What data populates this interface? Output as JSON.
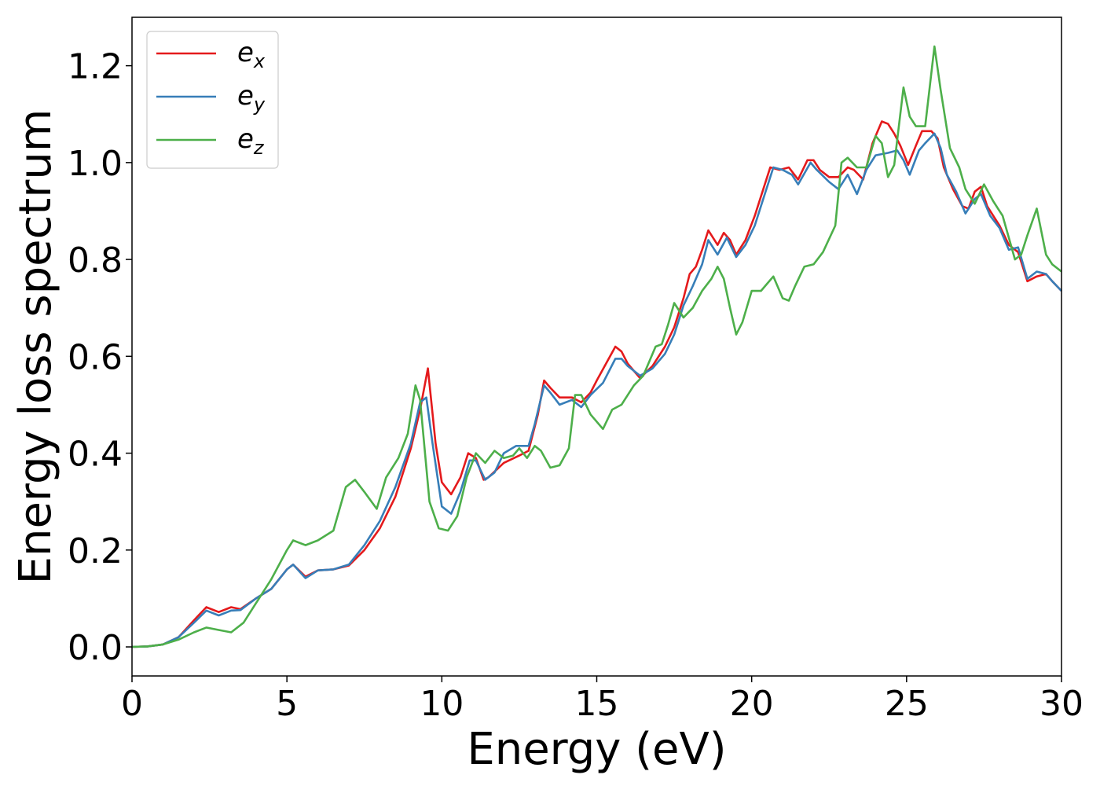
{
  "chart_data": {
    "type": "line",
    "xlabel": "Energy (eV)",
    "ylabel": "Energy loss spectrum",
    "xlim": [
      0,
      30
    ],
    "ylim": [
      -0.06,
      1.3
    ],
    "xticks": [
      0,
      5,
      10,
      15,
      20,
      25,
      30
    ],
    "yticks": [
      0.0,
      0.2,
      0.4,
      0.6,
      0.8,
      1.0,
      1.2
    ],
    "xtick_labels": [
      "0",
      "5",
      "10",
      "15",
      "20",
      "25",
      "30"
    ],
    "ytick_labels": [
      "0.0",
      "0.2",
      "0.4",
      "0.6",
      "0.8",
      "1.0",
      "1.2"
    ],
    "grid": false,
    "legend_position": "top-left",
    "series": [
      {
        "name": "e_x",
        "color": "#e41a1c",
        "points": [
          [
            0,
            0
          ],
          [
            0.5,
            0.001
          ],
          [
            1,
            0.005
          ],
          [
            1.5,
            0.02
          ],
          [
            2,
            0.055
          ],
          [
            2.4,
            0.082
          ],
          [
            2.8,
            0.072
          ],
          [
            3.2,
            0.082
          ],
          [
            3.5,
            0.078
          ],
          [
            4,
            0.1
          ],
          [
            4.5,
            0.12
          ],
          [
            5,
            0.16
          ],
          [
            5.2,
            0.17
          ],
          [
            5.6,
            0.145
          ],
          [
            6,
            0.158
          ],
          [
            6.5,
            0.16
          ],
          [
            7,
            0.168
          ],
          [
            7.5,
            0.2
          ],
          [
            8,
            0.245
          ],
          [
            8.5,
            0.31
          ],
          [
            9,
            0.41
          ],
          [
            9.3,
            0.49
          ],
          [
            9.55,
            0.575
          ],
          [
            9.8,
            0.42
          ],
          [
            10,
            0.34
          ],
          [
            10.3,
            0.315
          ],
          [
            10.6,
            0.35
          ],
          [
            10.85,
            0.4
          ],
          [
            11.1,
            0.39
          ],
          [
            11.35,
            0.345
          ],
          [
            11.5,
            0.35
          ],
          [
            12,
            0.38
          ],
          [
            12.5,
            0.395
          ],
          [
            12.8,
            0.405
          ],
          [
            13.1,
            0.48
          ],
          [
            13.3,
            0.55
          ],
          [
            13.5,
            0.535
          ],
          [
            13.8,
            0.515
          ],
          [
            14.2,
            0.515
          ],
          [
            14.5,
            0.505
          ],
          [
            14.8,
            0.525
          ],
          [
            15,
            0.55
          ],
          [
            15.3,
            0.585
          ],
          [
            15.6,
            0.62
          ],
          [
            15.8,
            0.61
          ],
          [
            16,
            0.585
          ],
          [
            16.4,
            0.555
          ],
          [
            16.8,
            0.58
          ],
          [
            17.2,
            0.62
          ],
          [
            17.5,
            0.66
          ],
          [
            17.8,
            0.72
          ],
          [
            18,
            0.77
          ],
          [
            18.2,
            0.785
          ],
          [
            18.4,
            0.82
          ],
          [
            18.6,
            0.86
          ],
          [
            18.9,
            0.83
          ],
          [
            19.1,
            0.855
          ],
          [
            19.3,
            0.84
          ],
          [
            19.5,
            0.81
          ],
          [
            19.8,
            0.84
          ],
          [
            20.1,
            0.89
          ],
          [
            20.4,
            0.95
          ],
          [
            20.6,
            0.99
          ],
          [
            20.9,
            0.985
          ],
          [
            21.2,
            0.99
          ],
          [
            21.5,
            0.965
          ],
          [
            21.8,
            1.005
          ],
          [
            22,
            1.005
          ],
          [
            22.2,
            0.985
          ],
          [
            22.5,
            0.97
          ],
          [
            22.8,
            0.97
          ],
          [
            23.1,
            0.99
          ],
          [
            23.3,
            0.985
          ],
          [
            23.6,
            0.965
          ],
          [
            23.9,
            1.04
          ],
          [
            24.2,
            1.085
          ],
          [
            24.4,
            1.08
          ],
          [
            24.6,
            1.06
          ],
          [
            24.8,
            1.035
          ],
          [
            25.05,
            0.995
          ],
          [
            25.3,
            1.035
          ],
          [
            25.5,
            1.065
          ],
          [
            25.8,
            1.065
          ],
          [
            26,
            1.05
          ],
          [
            26.2,
            0.99
          ],
          [
            26.5,
            0.945
          ],
          [
            26.8,
            0.91
          ],
          [
            27,
            0.905
          ],
          [
            27.2,
            0.94
          ],
          [
            27.4,
            0.95
          ],
          [
            27.6,
            0.91
          ],
          [
            28,
            0.87
          ],
          [
            28.3,
            0.83
          ],
          [
            28.6,
            0.815
          ],
          [
            28.9,
            0.755
          ],
          [
            29.2,
            0.765
          ],
          [
            29.5,
            0.77
          ],
          [
            29.7,
            0.755
          ],
          [
            30,
            0.735
          ]
        ]
      },
      {
        "name": "e_y",
        "color": "#377eb8",
        "points": [
          [
            0,
            0
          ],
          [
            0.5,
            0.001
          ],
          [
            1,
            0.005
          ],
          [
            1.5,
            0.02
          ],
          [
            2,
            0.05
          ],
          [
            2.4,
            0.075
          ],
          [
            2.8,
            0.065
          ],
          [
            3.2,
            0.075
          ],
          [
            3.5,
            0.076
          ],
          [
            4,
            0.1
          ],
          [
            4.5,
            0.12
          ],
          [
            5,
            0.16
          ],
          [
            5.2,
            0.17
          ],
          [
            5.6,
            0.142
          ],
          [
            6,
            0.158
          ],
          [
            6.5,
            0.16
          ],
          [
            7,
            0.17
          ],
          [
            7.5,
            0.21
          ],
          [
            8,
            0.26
          ],
          [
            8.5,
            0.33
          ],
          [
            9,
            0.42
          ],
          [
            9.3,
            0.505
          ],
          [
            9.5,
            0.515
          ],
          [
            9.7,
            0.42
          ],
          [
            10,
            0.29
          ],
          [
            10.3,
            0.275
          ],
          [
            10.6,
            0.32
          ],
          [
            10.9,
            0.385
          ],
          [
            11.1,
            0.385
          ],
          [
            11.4,
            0.345
          ],
          [
            11.7,
            0.36
          ],
          [
            12,
            0.4
          ],
          [
            12.4,
            0.415
          ],
          [
            12.8,
            0.415
          ],
          [
            13,
            0.46
          ],
          [
            13.3,
            0.54
          ],
          [
            13.5,
            0.525
          ],
          [
            13.8,
            0.5
          ],
          [
            14.2,
            0.51
          ],
          [
            14.5,
            0.495
          ],
          [
            14.8,
            0.52
          ],
          [
            15.2,
            0.545
          ],
          [
            15.6,
            0.595
          ],
          [
            15.8,
            0.595
          ],
          [
            16,
            0.58
          ],
          [
            16.4,
            0.56
          ],
          [
            16.8,
            0.575
          ],
          [
            17.2,
            0.605
          ],
          [
            17.5,
            0.645
          ],
          [
            17.8,
            0.705
          ],
          [
            18.1,
            0.745
          ],
          [
            18.4,
            0.79
          ],
          [
            18.6,
            0.84
          ],
          [
            18.9,
            0.81
          ],
          [
            19.2,
            0.845
          ],
          [
            19.5,
            0.805
          ],
          [
            19.8,
            0.83
          ],
          [
            20.1,
            0.87
          ],
          [
            20.4,
            0.93
          ],
          [
            20.7,
            0.99
          ],
          [
            21,
            0.985
          ],
          [
            21.3,
            0.975
          ],
          [
            21.5,
            0.955
          ],
          [
            21.9,
            1.0
          ],
          [
            22.1,
            0.985
          ],
          [
            22.5,
            0.96
          ],
          [
            22.8,
            0.945
          ],
          [
            23.1,
            0.975
          ],
          [
            23.4,
            0.935
          ],
          [
            23.7,
            0.985
          ],
          [
            24,
            1.015
          ],
          [
            24.4,
            1.02
          ],
          [
            24.7,
            1.025
          ],
          [
            24.9,
            1.005
          ],
          [
            25.1,
            0.975
          ],
          [
            25.4,
            1.025
          ],
          [
            25.6,
            1.04
          ],
          [
            25.9,
            1.06
          ],
          [
            26.1,
            1.03
          ],
          [
            26.3,
            0.975
          ],
          [
            26.6,
            0.94
          ],
          [
            26.9,
            0.895
          ],
          [
            27.2,
            0.925
          ],
          [
            27.4,
            0.935
          ],
          [
            27.7,
            0.89
          ],
          [
            28,
            0.865
          ],
          [
            28.3,
            0.82
          ],
          [
            28.6,
            0.825
          ],
          [
            28.9,
            0.76
          ],
          [
            29.2,
            0.775
          ],
          [
            29.5,
            0.77
          ],
          [
            29.7,
            0.755
          ],
          [
            30,
            0.735
          ]
        ]
      },
      {
        "name": "e_z",
        "color": "#4daf4a",
        "points": [
          [
            0,
            0
          ],
          [
            0.5,
            0.001
          ],
          [
            1,
            0.005
          ],
          [
            1.5,
            0.015
          ],
          [
            2,
            0.03
          ],
          [
            2.4,
            0.04
          ],
          [
            2.8,
            0.035
          ],
          [
            3.2,
            0.03
          ],
          [
            3.6,
            0.05
          ],
          [
            4,
            0.09
          ],
          [
            4.5,
            0.14
          ],
          [
            5,
            0.2
          ],
          [
            5.2,
            0.22
          ],
          [
            5.6,
            0.21
          ],
          [
            6,
            0.22
          ],
          [
            6.5,
            0.24
          ],
          [
            6.9,
            0.33
          ],
          [
            7.2,
            0.345
          ],
          [
            7.5,
            0.32
          ],
          [
            7.9,
            0.285
          ],
          [
            8.2,
            0.35
          ],
          [
            8.6,
            0.39
          ],
          [
            8.9,
            0.44
          ],
          [
            9.15,
            0.54
          ],
          [
            9.3,
            0.51
          ],
          [
            9.6,
            0.3
          ],
          [
            9.9,
            0.245
          ],
          [
            10.2,
            0.24
          ],
          [
            10.5,
            0.27
          ],
          [
            10.8,
            0.35
          ],
          [
            11.1,
            0.4
          ],
          [
            11.4,
            0.38
          ],
          [
            11.7,
            0.405
          ],
          [
            12,
            0.39
          ],
          [
            12.3,
            0.395
          ],
          [
            12.5,
            0.41
          ],
          [
            12.75,
            0.39
          ],
          [
            13,
            0.415
          ],
          [
            13.2,
            0.405
          ],
          [
            13.5,
            0.37
          ],
          [
            13.8,
            0.375
          ],
          [
            14.1,
            0.41
          ],
          [
            14.3,
            0.52
          ],
          [
            14.5,
            0.52
          ],
          [
            14.8,
            0.48
          ],
          [
            15.2,
            0.45
          ],
          [
            15.5,
            0.49
          ],
          [
            15.8,
            0.5
          ],
          [
            16.2,
            0.54
          ],
          [
            16.5,
            0.56
          ],
          [
            16.9,
            0.62
          ],
          [
            17.1,
            0.625
          ],
          [
            17.3,
            0.665
          ],
          [
            17.5,
            0.71
          ],
          [
            17.8,
            0.68
          ],
          [
            18.1,
            0.7
          ],
          [
            18.4,
            0.735
          ],
          [
            18.7,
            0.76
          ],
          [
            18.9,
            0.785
          ],
          [
            19.1,
            0.76
          ],
          [
            19.3,
            0.7
          ],
          [
            19.5,
            0.645
          ],
          [
            19.7,
            0.67
          ],
          [
            20,
            0.735
          ],
          [
            20.3,
            0.735
          ],
          [
            20.5,
            0.75
          ],
          [
            20.7,
            0.765
          ],
          [
            21,
            0.72
          ],
          [
            21.2,
            0.715
          ],
          [
            21.4,
            0.745
          ],
          [
            21.7,
            0.785
          ],
          [
            22,
            0.79
          ],
          [
            22.3,
            0.815
          ],
          [
            22.7,
            0.87
          ],
          [
            22.9,
            1.0
          ],
          [
            23.1,
            1.01
          ],
          [
            23.4,
            0.99
          ],
          [
            23.7,
            0.99
          ],
          [
            24,
            1.055
          ],
          [
            24.2,
            1.04
          ],
          [
            24.4,
            0.97
          ],
          [
            24.6,
            0.995
          ],
          [
            24.9,
            1.155
          ],
          [
            25.1,
            1.095
          ],
          [
            25.3,
            1.075
          ],
          [
            25.6,
            1.075
          ],
          [
            25.9,
            1.24
          ],
          [
            26.1,
            1.15
          ],
          [
            26.4,
            1.03
          ],
          [
            26.7,
            0.99
          ],
          [
            26.9,
            0.945
          ],
          [
            27.2,
            0.915
          ],
          [
            27.5,
            0.955
          ],
          [
            27.8,
            0.92
          ],
          [
            28.1,
            0.89
          ],
          [
            28.5,
            0.8
          ],
          [
            28.7,
            0.81
          ],
          [
            28.9,
            0.85
          ],
          [
            29.2,
            0.905
          ],
          [
            29.5,
            0.81
          ],
          [
            29.7,
            0.79
          ],
          [
            30,
            0.775
          ]
        ]
      }
    ]
  }
}
